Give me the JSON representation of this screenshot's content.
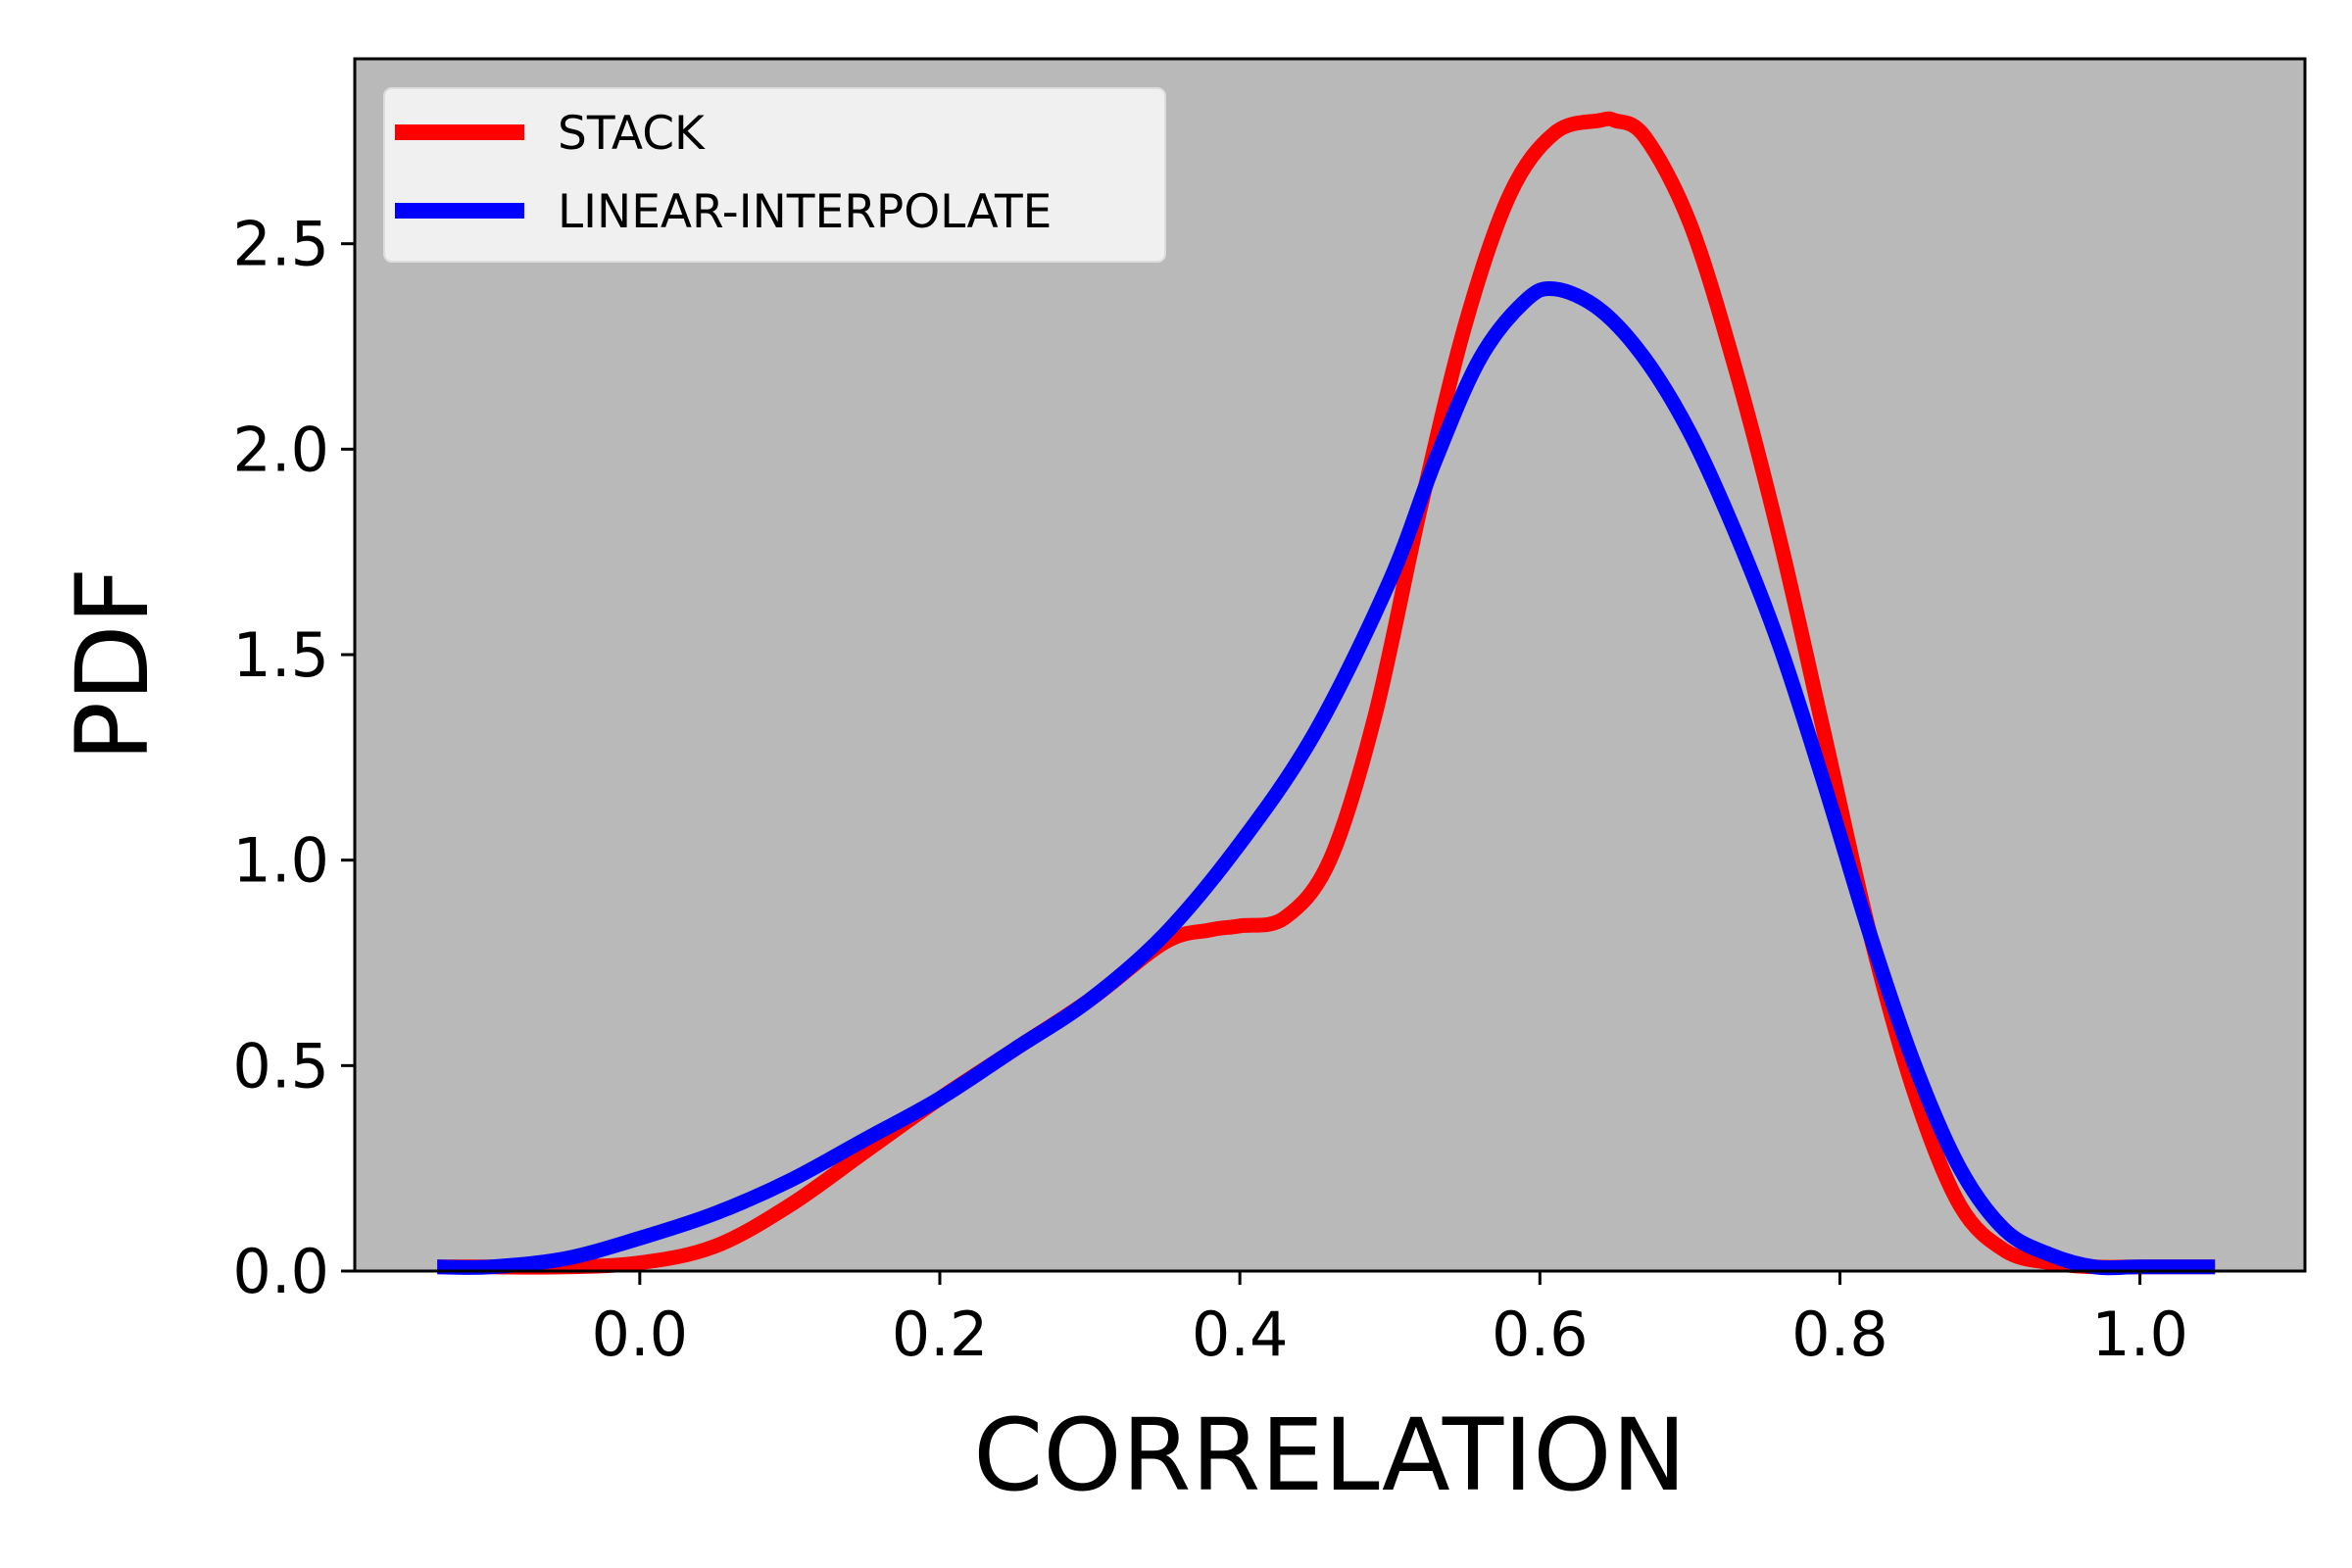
{
  "chart_data": {
    "type": "line",
    "xlabel": "CORRELATION",
    "ylabel": "PDF",
    "xlim": [
      -0.19,
      1.11
    ],
    "ylim": [
      0.0,
      2.95
    ],
    "x_ticks": [
      "0.0",
      "0.2",
      "0.4",
      "0.6",
      "0.8",
      "1.0"
    ],
    "y_ticks": [
      "0.0",
      "0.5",
      "1.0",
      "1.5",
      "2.0",
      "2.5"
    ],
    "grid": false,
    "legend_position": "top-left",
    "colors": {
      "plot_background": "#b9b9b9",
      "legend_background": "#f0f0f0"
    },
    "series": [
      {
        "name": "STACK",
        "color": "#ff0000",
        "x": [
          -0.135,
          -0.1,
          -0.05,
          0.0,
          0.05,
          0.1,
          0.15,
          0.2,
          0.25,
          0.3,
          0.35,
          0.38,
          0.4,
          0.43,
          0.46,
          0.49,
          0.52,
          0.55,
          0.58,
          0.61,
          0.64,
          0.65,
          0.67,
          0.7,
          0.73,
          0.76,
          0.79,
          0.82,
          0.85,
          0.88,
          0.91,
          0.94,
          0.97,
          1.0,
          1.05
        ],
        "y": [
          0.01,
          0.01,
          0.01,
          0.02,
          0.06,
          0.16,
          0.29,
          0.42,
          0.54,
          0.66,
          0.8,
          0.83,
          0.84,
          0.86,
          1.0,
          1.35,
          1.85,
          2.3,
          2.62,
          2.77,
          2.8,
          2.8,
          2.76,
          2.55,
          2.2,
          1.78,
          1.3,
          0.82,
          0.43,
          0.16,
          0.05,
          0.02,
          0.01,
          0.01,
          0.01
        ]
      },
      {
        "name": "LINEAR-INTERPOLATE",
        "color": "#0000ff",
        "x": [
          -0.135,
          -0.1,
          -0.05,
          0.0,
          0.05,
          0.1,
          0.15,
          0.2,
          0.25,
          0.3,
          0.35,
          0.4,
          0.45,
          0.5,
          0.53,
          0.56,
          0.59,
          0.61,
          0.64,
          0.67,
          0.7,
          0.73,
          0.76,
          0.79,
          0.82,
          0.85,
          0.88,
          0.91,
          0.94,
          0.97,
          1.0,
          1.05
        ],
        "y": [
          0.01,
          0.01,
          0.03,
          0.08,
          0.14,
          0.22,
          0.32,
          0.42,
          0.54,
          0.66,
          0.82,
          1.04,
          1.31,
          1.68,
          1.97,
          2.22,
          2.36,
          2.39,
          2.34,
          2.22,
          2.04,
          1.8,
          1.52,
          1.18,
          0.82,
          0.5,
          0.25,
          0.1,
          0.04,
          0.01,
          0.01,
          0.01
        ]
      }
    ]
  }
}
